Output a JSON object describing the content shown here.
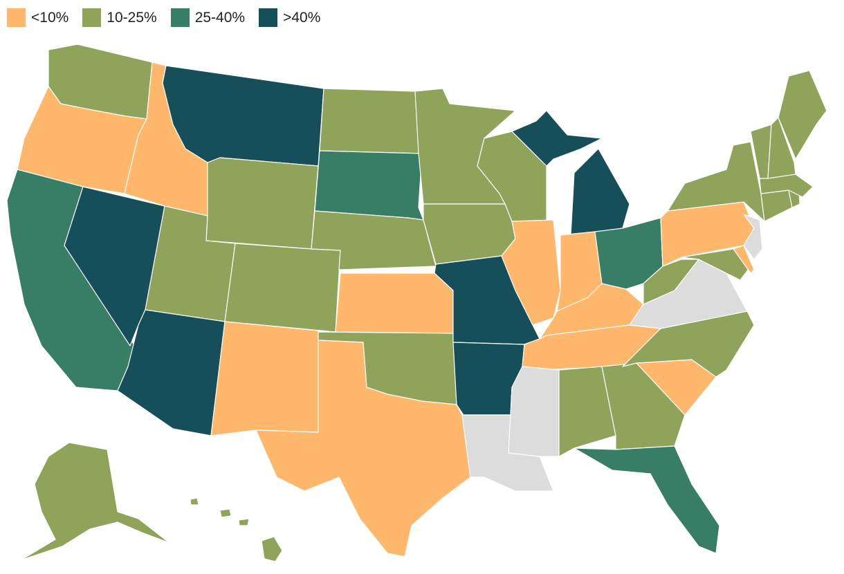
{
  "legend": [
    {
      "label": "<10%",
      "color": "#FFB76B"
    },
    {
      "label": "10-25%",
      "color": "#8FA35A"
    },
    {
      "label": "25-40%",
      "color": "#387D66"
    },
    {
      "label": ">40%",
      "color": "#164F5A"
    }
  ],
  "no_data_color": "#DCDCDC",
  "states": {
    "WA": "10-25%",
    "OR": "<10%",
    "CA": "25-40%",
    "NV": ">40%",
    "ID": "<10%",
    "MT": ">40%",
    "WY": "10-25%",
    "UT": "10-25%",
    "AZ": ">40%",
    "CO": "10-25%",
    "NM": "<10%",
    "ND": "10-25%",
    "SD": "25-40%",
    "NE": "10-25%",
    "KS": "<10%",
    "OK": "10-25%",
    "TX": "<10%",
    "MN": "10-25%",
    "IA": "10-25%",
    "MO": ">40%",
    "AR": ">40%",
    "LA": "no-data",
    "WI": "10-25%",
    "IL": "<10%",
    "MS": "no-data",
    "MI": ">40%",
    "IN": "<10%",
    "KY": "<10%",
    "TN": "<10%",
    "AL": "10-25%",
    "OH": "25-40%",
    "GA": "10-25%",
    "FL": "25-40%",
    "SC": "<10%",
    "NC": "10-25%",
    "VA": "no-data",
    "WV": "10-25%",
    "MD": "10-25%",
    "DE": "<10%",
    "PA": "<10%",
    "NJ": "no-data",
    "NY": "10-25%",
    "CT": "10-25%",
    "RI": "10-25%",
    "MA": "10-25%",
    "VT": "10-25%",
    "NH": "10-25%",
    "ME": "10-25%",
    "AK": "10-25%",
    "HI": "10-25%"
  }
}
